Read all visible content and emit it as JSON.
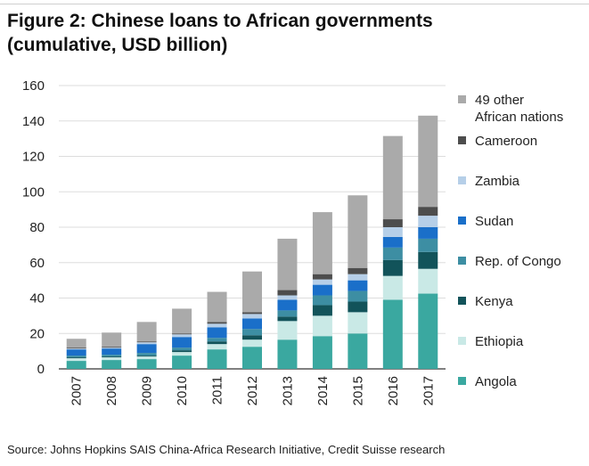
{
  "figure": {
    "title_line1": "Figure 2: Chinese loans to African governments",
    "title_line2": "(cumulative, USD billion)",
    "source": "Source: Johns Hopkins SAIS China-Africa Research Initiative, Credit Suisse research"
  },
  "chart_data": {
    "type": "bar",
    "stacked": true,
    "title": "Figure 2: Chinese loans to African governments (cumulative, USD billion)",
    "categories": [
      "2007",
      "2008",
      "2009",
      "2010",
      "2011",
      "2012",
      "2013",
      "2014",
      "2015",
      "2016",
      "2017"
    ],
    "ylim": [
      0,
      160
    ],
    "yticks": [
      "0",
      "20",
      "40",
      "60",
      "80",
      "100",
      "120",
      "140",
      "160"
    ],
    "grid": true,
    "legend_position": "right",
    "series": [
      {
        "name": "Angola",
        "color": "#3aa8a0",
        "values": [
          4.5,
          5,
          5.5,
          7.5,
          11,
          12.5,
          16.5,
          18.5,
          20,
          39,
          42.5
        ]
      },
      {
        "name": "Ethiopia",
        "color": "#c9e9e6",
        "values": [
          1.5,
          1.5,
          1.5,
          2,
          3,
          4,
          10.5,
          11.5,
          12,
          13.5,
          14
        ]
      },
      {
        "name": "Kenya",
        "color": "#12535a",
        "values": [
          0.5,
          0.5,
          0.5,
          1,
          1.5,
          2.5,
          2.5,
          6,
          6,
          9,
          9.5
        ]
      },
      {
        "name": "Rep. of Congo",
        "color": "#3d8ea3",
        "values": [
          1,
          1,
          1.5,
          1.5,
          2,
          3.5,
          3.5,
          5.5,
          6,
          7,
          7.5
        ]
      },
      {
        "name": "Sudan",
        "color": "#1a6fc9",
        "values": [
          3.5,
          3.5,
          5,
          6,
          6,
          6,
          6,
          6,
          6,
          6,
          6.5
        ]
      },
      {
        "name": "Zambia",
        "color": "#b6cfe8",
        "values": [
          0.5,
          0.5,
          1,
          1.5,
          2,
          2.5,
          2.5,
          3,
          3.5,
          5.5,
          6.5
        ]
      },
      {
        "name": "Cameroon",
        "color": "#4d4d4d",
        "values": [
          0.5,
          0.5,
          0.5,
          0.5,
          1,
          1,
          3,
          3,
          3.5,
          4.5,
          5
        ]
      },
      {
        "name": "49 other African nations",
        "color": "#aaaaaa",
        "values": [
          5,
          8,
          11,
          14,
          17,
          23,
          29,
          35,
          41,
          47,
          51.5
        ]
      }
    ]
  }
}
